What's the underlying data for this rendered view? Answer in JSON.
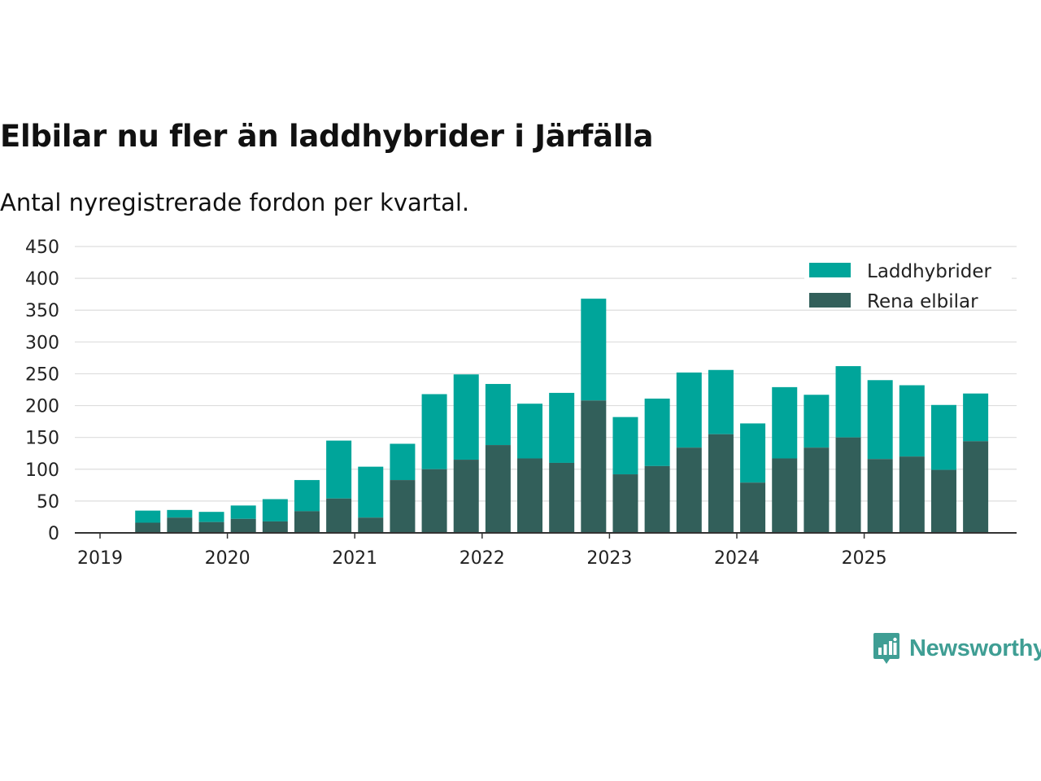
{
  "header": {
    "title": "Elbilar nu fler än laddhybrider i Järfälla",
    "subtitle": "Antal nyregistrerade fordon per kvartal."
  },
  "brand": {
    "name": "Newsworthy",
    "icon": "newsworthy-logo-icon",
    "color": "#3f9e94"
  },
  "colors": {
    "laddhybrider": "#00a59a",
    "rena_elbilar": "#325f5a",
    "grid": "#dddddd",
    "axis": "#333333"
  },
  "chart_data": {
    "type": "bar",
    "stacked": true,
    "title": "Elbilar nu fler än laddhybrider i Järfälla",
    "subtitle": "Antal nyregistrerade fordon per kvartal.",
    "xlabel": "",
    "ylabel": "",
    "ylim": [
      0,
      450
    ],
    "yticks": [
      0,
      50,
      100,
      150,
      200,
      250,
      300,
      350,
      400,
      450
    ],
    "xticks": [
      "2019",
      "2020",
      "2021",
      "2022",
      "2023",
      "2024",
      "2025"
    ],
    "grid": true,
    "legend": "top-right",
    "categories": [
      "2019 Q2",
      "2019 Q3",
      "2019 Q4",
      "2020 Q1",
      "2020 Q2",
      "2020 Q3",
      "2020 Q4",
      "2021 Q1",
      "2021 Q2",
      "2021 Q3",
      "2021 Q4",
      "2022 Q1",
      "2022 Q2",
      "2022 Q3",
      "2022 Q4",
      "2023 Q1",
      "2023 Q2",
      "2023 Q3",
      "2023 Q4",
      "2024 Q1",
      "2024 Q2",
      "2024 Q3",
      "2024 Q4",
      "2025 Q1",
      "2025 Q2",
      "2025 Q3",
      "2025 Q4"
    ],
    "series": [
      {
        "name": "Rena elbilar",
        "color": "#325f5a",
        "values": [
          16,
          24,
          17,
          22,
          18,
          34,
          54,
          24,
          83,
          100,
          115,
          138,
          117,
          110,
          208,
          92,
          105,
          134,
          155,
          79,
          117,
          134,
          150,
          116,
          120,
          99,
          144
        ]
      },
      {
        "name": "Laddhybrider",
        "color": "#00a59a",
        "values": [
          19,
          12,
          16,
          21,
          35,
          49,
          91,
          80,
          57,
          118,
          134,
          96,
          86,
          110,
          160,
          90,
          106,
          118,
          101,
          93,
          112,
          83,
          112,
          124,
          112,
          102,
          75
        ]
      }
    ],
    "legend_order": [
      "Laddhybrider",
      "Rena elbilar"
    ]
  }
}
